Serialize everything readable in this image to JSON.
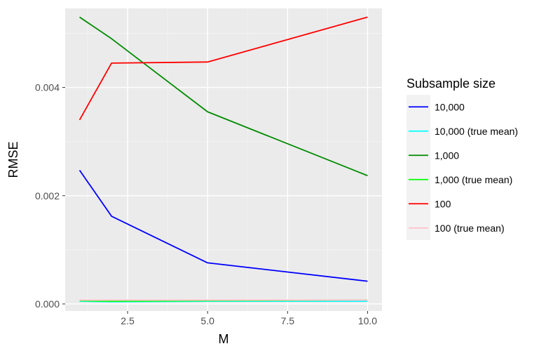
{
  "chart_data": {
    "type": "line",
    "xlabel": "M",
    "ylabel": "RMSE",
    "xlim": [
      0.55,
      10.45
    ],
    "ylim": [
      -0.00013,
      0.00546
    ],
    "x_ticks": [
      2.5,
      5.0,
      7.5,
      10.0
    ],
    "x_tick_labels": [
      "2.5",
      "5.0",
      "7.5",
      "10.0"
    ],
    "y_ticks": [
      0.0,
      0.002,
      0.004
    ],
    "y_tick_labels": [
      "0.000",
      "0.002",
      "0.004"
    ],
    "grid": true,
    "legend": {
      "title": "Subsample size",
      "position": "right"
    },
    "series": [
      {
        "name": "10,000",
        "color": "#0000ff",
        "x": [
          1,
          2,
          5,
          10
        ],
        "y": [
          0.00247,
          0.00162,
          0.00076,
          0.00042
        ]
      },
      {
        "name": "10,000 (true mean)",
        "color": "#00ffff",
        "x": [
          1,
          2,
          5,
          10
        ],
        "y": [
          5e-05,
          4e-05,
          5e-05,
          5e-05
        ]
      },
      {
        "name": "1,000",
        "color": "#008b00",
        "x": [
          1,
          2,
          5,
          10
        ],
        "y": [
          0.0053,
          0.0049,
          0.00355,
          0.00237
        ]
      },
      {
        "name": "1,000 (true mean)",
        "color": "#00ff00",
        "x": [
          1,
          2,
          5,
          10
        ],
        "y": [
          6e-05,
          5e-05,
          6e-05,
          7e-05
        ]
      },
      {
        "name": "100",
        "color": "#ff0000",
        "x": [
          1,
          2,
          5,
          10
        ],
        "y": [
          0.0034,
          0.00445,
          0.00447,
          0.0053
        ]
      },
      {
        "name": "100 (true mean)",
        "color": "#ffc0cb",
        "x": [
          1,
          2,
          5,
          10
        ],
        "y": [
          7e-05,
          7e-05,
          7e-05,
          7e-05
        ]
      }
    ]
  }
}
